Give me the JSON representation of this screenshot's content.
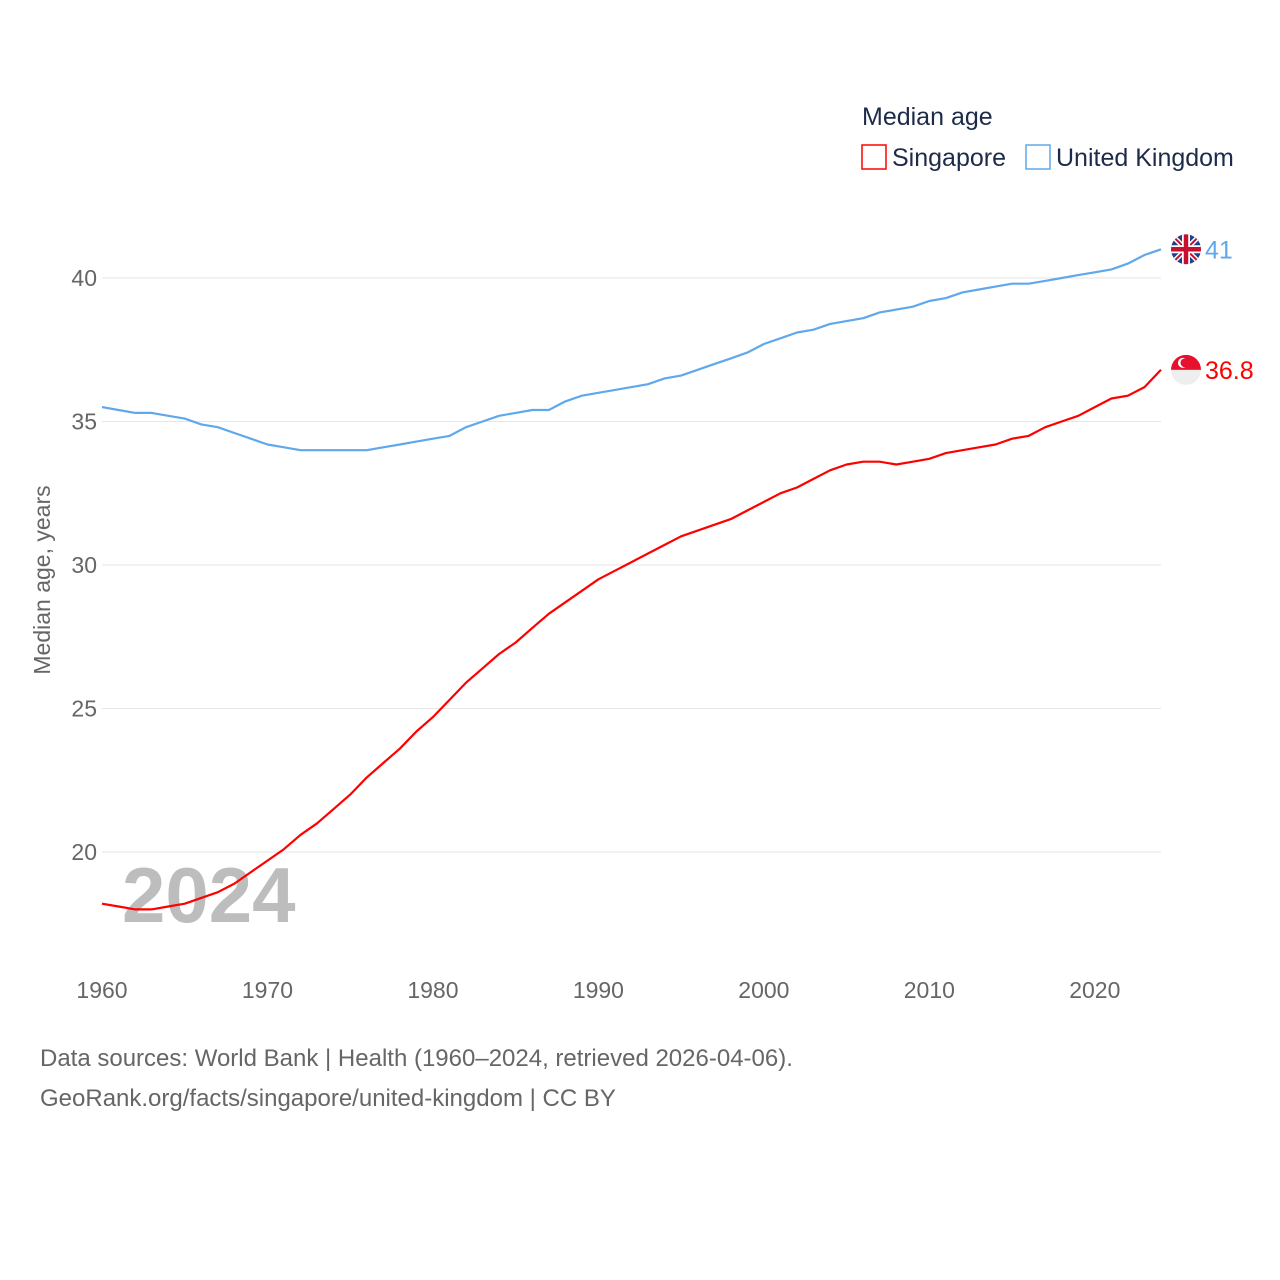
{
  "chart_data": {
    "type": "line",
    "title": "Median age",
    "xlabel": "",
    "ylabel": "Median age, years",
    "xlim": [
      1960,
      2024
    ],
    "ylim": [
      17.5,
      41
    ],
    "x_ticks": [
      1960,
      1970,
      1980,
      1990,
      2000,
      2010,
      2020
    ],
    "y_ticks": [
      20,
      25,
      30,
      35,
      40
    ],
    "grid": true,
    "legend_position": "top-right",
    "year_watermark": "2024",
    "x": [
      1960,
      1961,
      1962,
      1963,
      1964,
      1965,
      1966,
      1967,
      1968,
      1969,
      1970,
      1971,
      1972,
      1973,
      1974,
      1975,
      1976,
      1977,
      1978,
      1979,
      1980,
      1981,
      1982,
      1983,
      1984,
      1985,
      1986,
      1987,
      1988,
      1989,
      1990,
      1991,
      1992,
      1993,
      1994,
      1995,
      1996,
      1997,
      1998,
      1999,
      2000,
      2001,
      2002,
      2003,
      2004,
      2005,
      2006,
      2007,
      2008,
      2009,
      2010,
      2011,
      2012,
      2013,
      2014,
      2015,
      2016,
      2017,
      2018,
      2019,
      2020,
      2021,
      2022,
      2023,
      2024
    ],
    "series": [
      {
        "name": "Singapore",
        "color": "#ff0000",
        "end_label": "36.8",
        "flag": "singapore-flag",
        "values": [
          18.2,
          18.1,
          18.0,
          18.0,
          18.1,
          18.2,
          18.4,
          18.6,
          18.9,
          19.3,
          19.7,
          20.1,
          20.6,
          21.0,
          21.5,
          22.0,
          22.6,
          23.1,
          23.6,
          24.2,
          24.7,
          25.3,
          25.9,
          26.4,
          26.9,
          27.3,
          27.8,
          28.3,
          28.7,
          29.1,
          29.5,
          29.8,
          30.1,
          30.4,
          30.7,
          31.0,
          31.2,
          31.4,
          31.6,
          31.9,
          32.2,
          32.5,
          32.7,
          33.0,
          33.3,
          33.5,
          33.6,
          33.6,
          33.5,
          33.6,
          33.7,
          33.9,
          34.0,
          34.1,
          34.2,
          34.4,
          34.5,
          34.8,
          35.0,
          35.2,
          35.5,
          35.8,
          35.9,
          36.2,
          36.8
        ]
      },
      {
        "name": "United Kingdom",
        "color": "#5fa8ec",
        "end_label": "41",
        "flag": "uk-flag",
        "values": [
          35.5,
          35.4,
          35.3,
          35.3,
          35.2,
          35.1,
          34.9,
          34.8,
          34.6,
          34.4,
          34.2,
          34.1,
          34.0,
          34.0,
          34.0,
          34.0,
          34.0,
          34.1,
          34.2,
          34.3,
          34.4,
          34.5,
          34.8,
          35.0,
          35.2,
          35.3,
          35.4,
          35.4,
          35.7,
          35.9,
          36.0,
          36.1,
          36.2,
          36.3,
          36.5,
          36.6,
          36.8,
          37.0,
          37.2,
          37.4,
          37.7,
          37.9,
          38.1,
          38.2,
          38.4,
          38.5,
          38.6,
          38.8,
          38.9,
          39.0,
          39.2,
          39.3,
          39.5,
          39.6,
          39.7,
          39.8,
          39.8,
          39.9,
          40.0,
          40.1,
          40.2,
          40.3,
          40.5,
          40.8,
          41.0
        ]
      }
    ]
  },
  "footer": {
    "line1": "Data sources: World Bank | Health (1960–2024, retrieved 2026-04-06).",
    "line2": "GeoRank.org/facts/singapore/united-kingdom | CC BY"
  }
}
